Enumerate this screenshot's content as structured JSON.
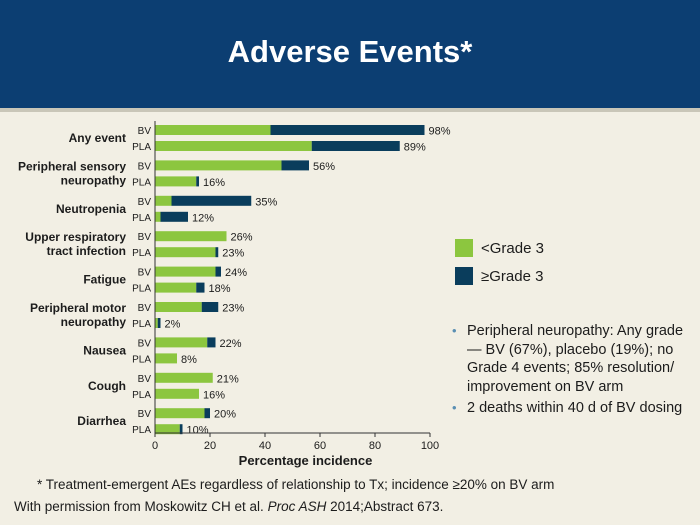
{
  "slide": {
    "title": "Adverse Events*",
    "footnote": "* Treatment-emergent AEs regardless of relationship to Tx; incidence ≥20% on BV arm",
    "credit_prefix": "With permission from Moskowitz CH et al. ",
    "credit_journal": "Proc ASH",
    "credit_suffix": " 2014;Abstract 673.",
    "notes": [
      "Peripheral neuropathy: Any grade — BV (67%), placebo (19%); no Grade 4 events; 85% resolution/ improvement on BV arm",
      "2 deaths within 40 d of BV dosing"
    ]
  },
  "colors": {
    "header": "#0c3e72",
    "grade_lt3": "#8cc63f",
    "grade_ge3": "#0a3d5c",
    "background": "#f2efe4",
    "bullet": "#5a8fb3"
  },
  "chart_data": {
    "type": "bar",
    "orientation": "horizontal",
    "stacked": true,
    "xlabel": "Percentage incidence",
    "xlim": [
      0,
      100
    ],
    "xticks": [
      0,
      20,
      40,
      60,
      80,
      100
    ],
    "grid": false,
    "legend": {
      "placement": "right",
      "entries": [
        "<Grade 3",
        "≥Grade 3"
      ]
    },
    "series_names": [
      "<Grade 3",
      "≥Grade 3"
    ],
    "categories": [
      {
        "label_lines": [
          "Any event"
        ],
        "bars": [
          {
            "arm": "BV",
            "lt3": 42,
            "ge3": 56,
            "total_label": "98%"
          },
          {
            "arm": "PLA",
            "lt3": 57,
            "ge3": 32,
            "total_label": "89%"
          }
        ]
      },
      {
        "label_lines": [
          "Peripheral sensory",
          "neuropathy"
        ],
        "bars": [
          {
            "arm": "BV",
            "lt3": 46,
            "ge3": 10,
            "total_label": "56%"
          },
          {
            "arm": "PLA",
            "lt3": 15,
            "ge3": 1,
            "total_label": "16%"
          }
        ]
      },
      {
        "label_lines": [
          "Neutropenia"
        ],
        "bars": [
          {
            "arm": "BV",
            "lt3": 6,
            "ge3": 29,
            "total_label": "35%"
          },
          {
            "arm": "PLA",
            "lt3": 2,
            "ge3": 10,
            "total_label": "12%"
          }
        ]
      },
      {
        "label_lines": [
          "Upper respiratory",
          "tract infection"
        ],
        "bars": [
          {
            "arm": "BV",
            "lt3": 26,
            "ge3": 0,
            "total_label": "26%"
          },
          {
            "arm": "PLA",
            "lt3": 22,
            "ge3": 1,
            "total_label": "23%"
          }
        ]
      },
      {
        "label_lines": [
          "Fatigue"
        ],
        "bars": [
          {
            "arm": "BV",
            "lt3": 22,
            "ge3": 2,
            "total_label": "24%"
          },
          {
            "arm": "PLA",
            "lt3": 15,
            "ge3": 3,
            "total_label": "18%"
          }
        ]
      },
      {
        "label_lines": [
          "Peripheral motor",
          "neuropathy"
        ],
        "bars": [
          {
            "arm": "BV",
            "lt3": 17,
            "ge3": 6,
            "total_label": "23%"
          },
          {
            "arm": "PLA",
            "lt3": 1,
            "ge3": 1,
            "total_label": "2%"
          }
        ]
      },
      {
        "label_lines": [
          "Nausea"
        ],
        "bars": [
          {
            "arm": "BV",
            "lt3": 19,
            "ge3": 3,
            "total_label": "22%"
          },
          {
            "arm": "PLA",
            "lt3": 8,
            "ge3": 0,
            "total_label": "8%"
          }
        ]
      },
      {
        "label_lines": [
          "Cough"
        ],
        "bars": [
          {
            "arm": "BV",
            "lt3": 21,
            "ge3": 0,
            "total_label": "21%"
          },
          {
            "arm": "PLA",
            "lt3": 16,
            "ge3": 0,
            "total_label": "16%"
          }
        ]
      },
      {
        "label_lines": [
          "Diarrhea"
        ],
        "bars": [
          {
            "arm": "BV",
            "lt3": 18,
            "ge3": 2,
            "total_label": "20%"
          },
          {
            "arm": "PLA",
            "lt3": 9,
            "ge3": 1,
            "total_label": "10%"
          }
        ]
      }
    ]
  }
}
